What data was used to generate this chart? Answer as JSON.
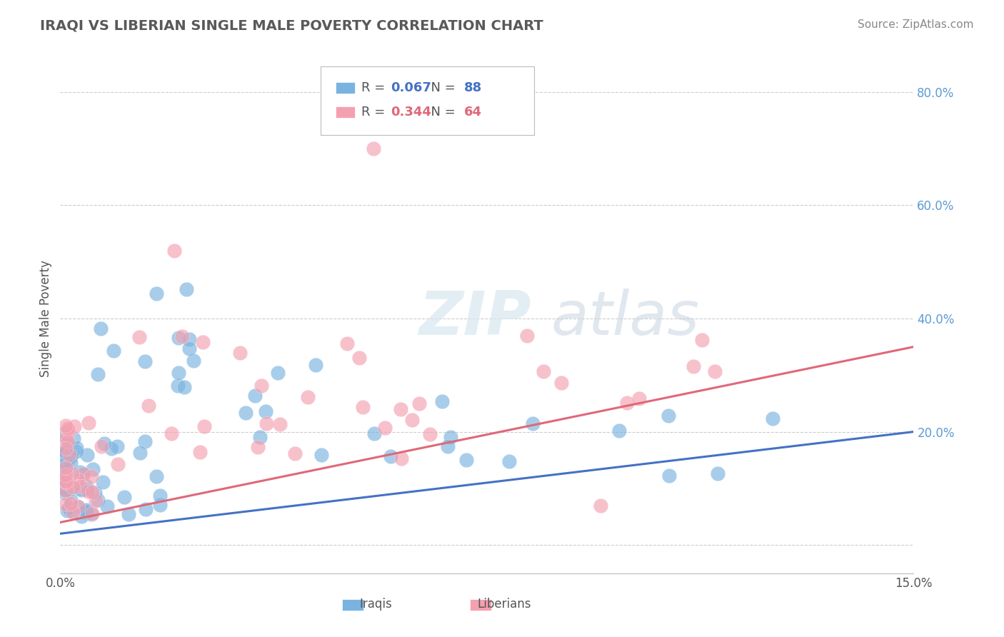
{
  "title": "IRAQI VS LIBERIAN SINGLE MALE POVERTY CORRELATION CHART",
  "source": "Source: ZipAtlas.com",
  "ylabel": "Single Male Poverty",
  "xmin": 0.0,
  "xmax": 0.15,
  "ymin": -0.05,
  "ymax": 0.85,
  "iraqi_R": 0.067,
  "iraqi_N": 88,
  "liberian_R": 0.344,
  "liberian_N": 64,
  "iraqi_color": "#7ab3e0",
  "liberian_color": "#f4a0b0",
  "iraqi_line_color": "#4472c4",
  "liberian_line_color": "#e06878",
  "watermark_zip": "ZIP",
  "watermark_atlas": "atlas",
  "grid_color": "#cccccc",
  "ytick_color": "#5b9bd5",
  "title_color": "#595959",
  "source_color": "#888888",
  "iraqi_line_y0": 0.02,
  "iraqi_line_y1": 0.2,
  "liberian_line_y0": 0.04,
  "liberian_line_y1": 0.35
}
